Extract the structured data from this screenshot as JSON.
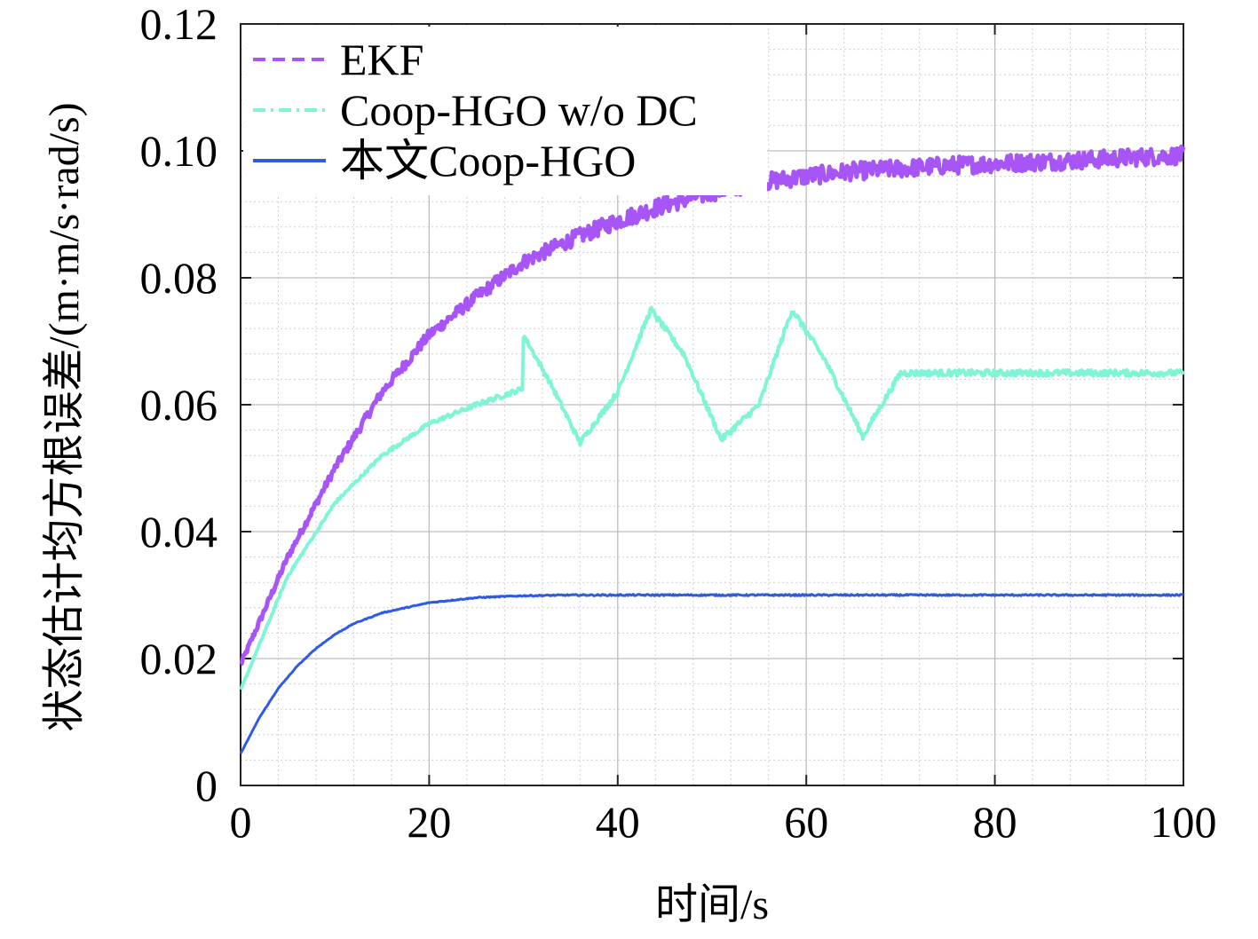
{
  "chart_data": {
    "type": "line",
    "title": "",
    "xlabel": "时间/s",
    "ylabel": "状态估计均方根误差/(m·m/s·rad/s)",
    "xlim": [
      0,
      100
    ],
    "ylim": [
      0,
      0.12
    ],
    "x_ticks": [
      0,
      20,
      40,
      60,
      80,
      100
    ],
    "x_tick_labels": [
      "0",
      "20",
      "40",
      "60",
      "80",
      "100"
    ],
    "y_ticks": [
      0,
      0.02,
      0.04,
      0.06,
      0.08,
      0.1,
      0.12
    ],
    "y_tick_labels": [
      "0",
      "0.02",
      "0.04",
      "0.06",
      "0.08",
      "0.10",
      "0.12"
    ],
    "grid": true,
    "legend_position": "top-left",
    "series": [
      {
        "name": "EKF",
        "color": "#a855f7",
        "style": "dashed",
        "x": [
          0,
          5,
          10,
          15,
          20,
          25,
          30,
          35,
          40,
          45,
          50,
          55,
          60,
          65,
          70,
          75,
          80,
          85,
          90,
          95,
          100
        ],
        "values": [
          0.019,
          0.036,
          0.05,
          0.062,
          0.071,
          0.077,
          0.0825,
          0.086,
          0.089,
          0.0915,
          0.0935,
          0.095,
          0.096,
          0.0968,
          0.0972,
          0.0977,
          0.098,
          0.0983,
          0.0986,
          0.099,
          0.0993
        ]
      },
      {
        "name": "Coop-HGO w/o DC",
        "color": "#7ff5d6",
        "style": "dashdot",
        "x": [
          0,
          5,
          10,
          15,
          20,
          25,
          29.9,
          30,
          33,
          36,
          40,
          43.5,
          47,
          51,
          55,
          58.5,
          62,
          66,
          70,
          75,
          80,
          85,
          90,
          95,
          100
        ],
        "values": [
          0.015,
          0.033,
          0.0445,
          0.052,
          0.057,
          0.06,
          0.0625,
          0.071,
          0.063,
          0.054,
          0.062,
          0.075,
          0.068,
          0.0545,
          0.06,
          0.075,
          0.067,
          0.055,
          0.065,
          0.065,
          0.065,
          0.065,
          0.065,
          0.065,
          0.065
        ]
      },
      {
        "name": "本文Coop-HGO",
        "color": "#2e5be6",
        "style": "solid",
        "x": [
          0,
          2,
          4,
          6,
          8,
          10,
          12,
          15,
          20,
          25,
          30,
          35,
          40,
          50,
          60,
          70,
          80,
          90,
          100
        ],
        "values": [
          0.005,
          0.0107,
          0.0153,
          0.0188,
          0.0216,
          0.0238,
          0.0255,
          0.0272,
          0.0288,
          0.0296,
          0.0299,
          0.03,
          0.03,
          0.03,
          0.03,
          0.03,
          0.03,
          0.03,
          0.03
        ]
      }
    ]
  }
}
